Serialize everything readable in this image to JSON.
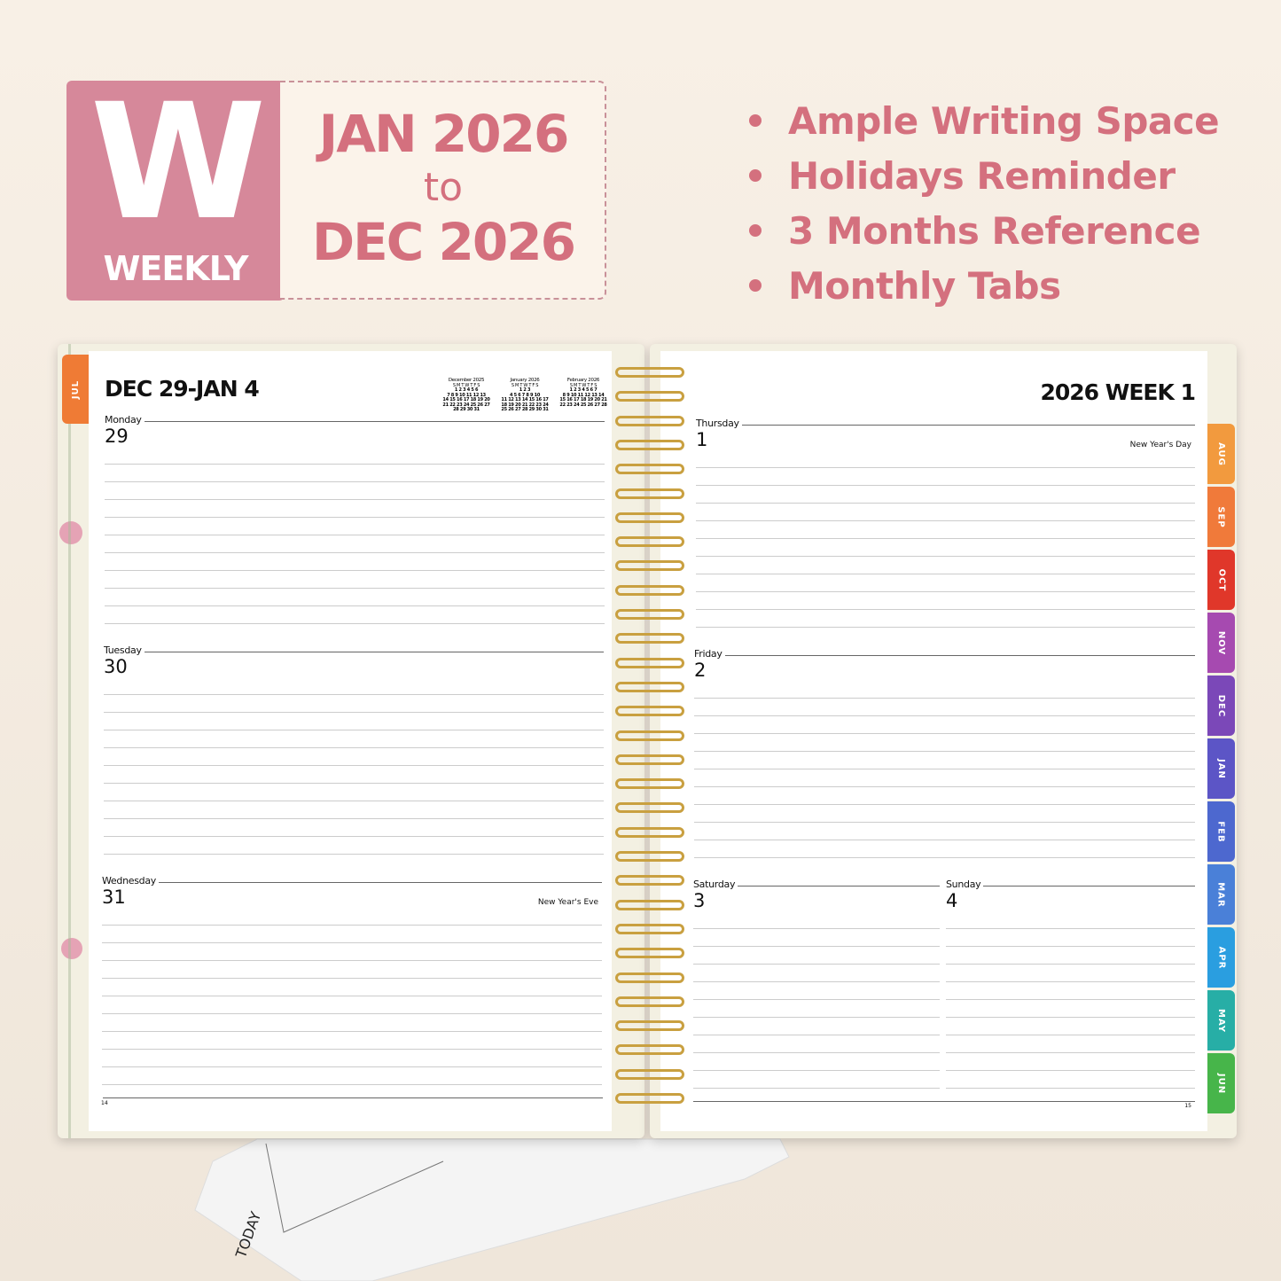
{
  "badge": {
    "letter": "W",
    "label": "WEEKLY",
    "color": "#d6889a"
  },
  "range": {
    "start": "JAN 2026",
    "to": "to",
    "end": "DEC 2026",
    "color": "#d4707e"
  },
  "features": [
    "Ample Writing Space",
    "Holidays Reminder",
    "3 Months Reference",
    "Monthly Tabs"
  ],
  "left_page": {
    "title": "DEC 29-JAN 4",
    "page_number": "14",
    "side_tab": {
      "label": "JUL",
      "color": "#ef7b35"
    },
    "mini_calendars": [
      {
        "title": "December 2025",
        "head": "S M T W T F S",
        "rows": [
          "1 2 3 4 5 6",
          "7 8 9 10 11 12 13",
          "14 15 16 17 18 19 20",
          "21 22 23 24 25 26 27",
          "28 29 30 31"
        ]
      },
      {
        "title": "January 2026",
        "head": "S M T W T F S",
        "rows": [
          "1 2 3",
          "4 5 6 7 8 9 10",
          "11 12 13 14 15 16 17",
          "18 19 20 21 22 23 24",
          "25 26 27 28 29 30 31"
        ]
      },
      {
        "title": "February 2026",
        "head": "S M T W T F S",
        "rows": [
          "1 2 3 4 5 6 7",
          "8 9 10 11 12 13 14",
          "15 16 17 18 19 20 21",
          "22 23 24 25 26 27 28"
        ]
      }
    ],
    "days": [
      {
        "name": "Monday",
        "date": "29",
        "holiday": ""
      },
      {
        "name": "Tuesday",
        "date": "30",
        "holiday": ""
      },
      {
        "name": "Wednesday",
        "date": "31",
        "holiday": "New Year's Eve"
      }
    ]
  },
  "right_page": {
    "title": "2026 WEEK 1",
    "page_number": "15",
    "days": [
      {
        "name": "Thursday",
        "date": "1",
        "holiday": "New Year's Day"
      },
      {
        "name": "Friday",
        "date": "2",
        "holiday": ""
      },
      {
        "name": "Saturday",
        "date": "3",
        "holiday": ""
      },
      {
        "name": "Sunday",
        "date": "4",
        "holiday": ""
      }
    ],
    "tabs": [
      {
        "label": "AUG",
        "color": "#f29a3e"
      },
      {
        "label": "SEP",
        "color": "#f07a3a"
      },
      {
        "label": "OCT",
        "color": "#e0372a"
      },
      {
        "label": "NOV",
        "color": "#a64ab0"
      },
      {
        "label": "DEC",
        "color": "#7b48b8"
      },
      {
        "label": "JAN",
        "color": "#5c55c6"
      },
      {
        "label": "FEB",
        "color": "#4d68cf"
      },
      {
        "label": "MAR",
        "color": "#4a80d8"
      },
      {
        "label": "APR",
        "color": "#2a9ee0"
      },
      {
        "label": "MAY",
        "color": "#27aea6"
      },
      {
        "label": "JUN",
        "color": "#47b54a"
      }
    ]
  },
  "bookmark": {
    "label": "TODAY"
  },
  "spiral_color": "#c9a040"
}
